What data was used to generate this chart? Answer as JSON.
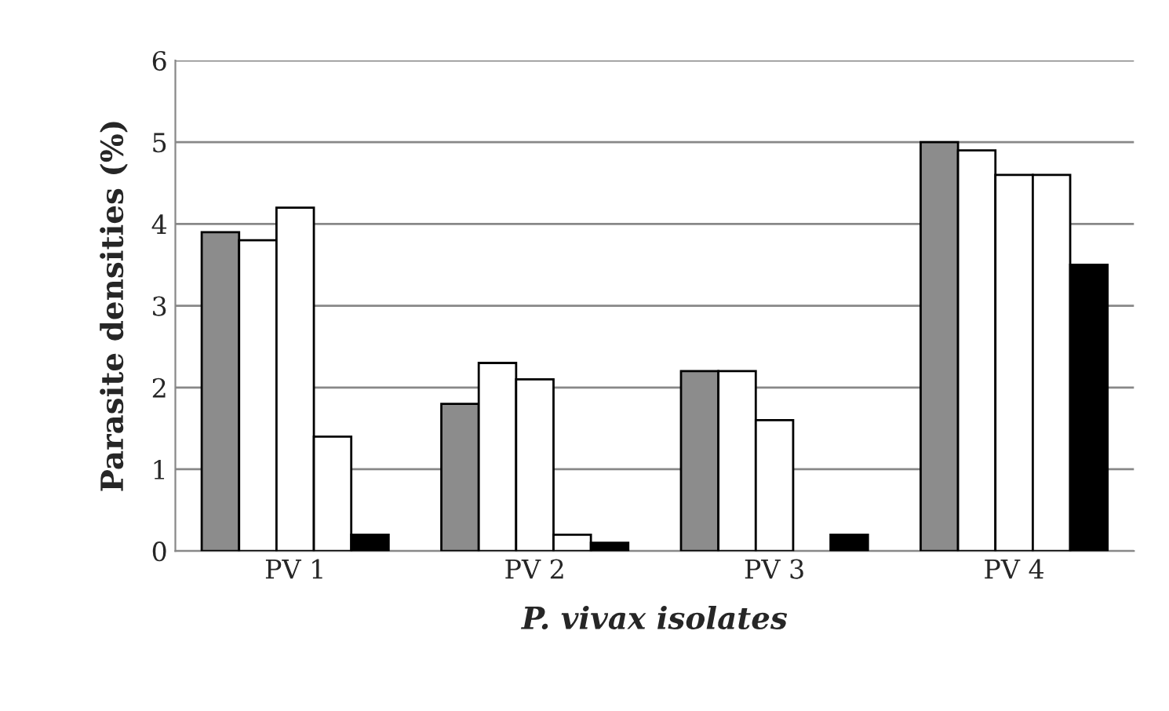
{
  "chart_data": {
    "type": "bar",
    "xlabel": "P. vivax isolates",
    "ylabel": "Parasite densities (%)",
    "categories": [
      "PV 1",
      "PV 2",
      "PV 3",
      "PV 4"
    ],
    "series": [
      {
        "color": "#8c8c8c",
        "values": [
          3.9,
          1.8,
          2.2,
          5.0
        ]
      },
      {
        "color": "#ffffff",
        "values": [
          3.8,
          2.3,
          2.2,
          4.9
        ]
      },
      {
        "color": "#ffffff",
        "values": [
          4.2,
          2.1,
          1.6,
          4.6
        ]
      },
      {
        "color": "#ffffff",
        "values": [
          1.4,
          0.2,
          0,
          4.6
        ]
      },
      {
        "color": "#000000",
        "values": [
          0.2,
          0.1,
          0.2,
          3.5
        ]
      }
    ],
    "ylim": [
      0,
      6
    ],
    "yticks": [
      0,
      1,
      2,
      3,
      4,
      5,
      6
    ],
    "grid": "y",
    "legend": false
  }
}
